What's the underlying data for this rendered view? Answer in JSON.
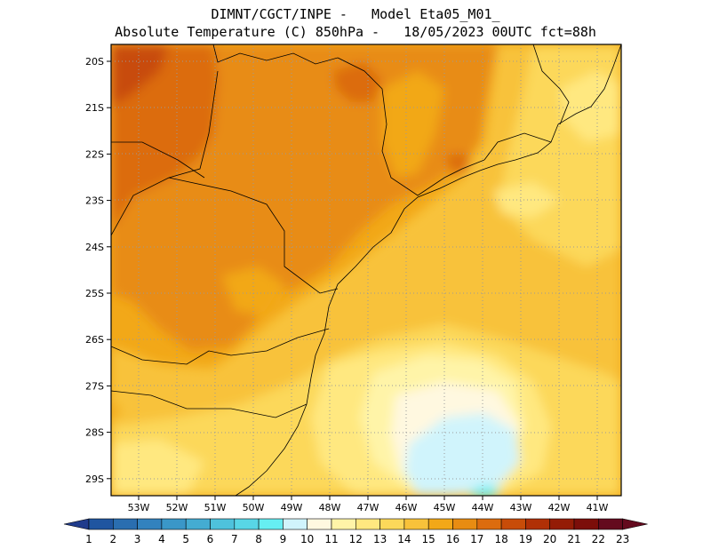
{
  "title_line1": "DIMNT/CGCT/INPE -   Model Eta05_M01_",
  "title_line2": "Absolute Temperature (C) 850hPa -   18/05/2023 00UTC fct=88h",
  "lon_ticks": [
    "53W",
    "52W",
    "51W",
    "50W",
    "49W",
    "48W",
    "47W",
    "46W",
    "45W",
    "44W",
    "43W",
    "42W",
    "41W"
  ],
  "lat_ticks": [
    "20S",
    "21S",
    "22S",
    "23S",
    "24S",
    "25S",
    "26S",
    "27S",
    "28S",
    "29S"
  ],
  "colorbar": {
    "labels": [
      "1",
      "2",
      "3",
      "4",
      "5",
      "6",
      "7",
      "8",
      "9",
      "10",
      "11",
      "12",
      "13",
      "14",
      "15",
      "16",
      "17",
      "18",
      "19",
      "20",
      "21",
      "22",
      "23"
    ],
    "colors": [
      "#203c8c",
      "#1f55a0",
      "#2a6eb0",
      "#3282be",
      "#3a97c8",
      "#44acd2",
      "#4ec2dc",
      "#58d6e6",
      "#66eef2",
      "#d0f4fc",
      "#fff8e0",
      "#fff4a8",
      "#ffe880",
      "#fcd85a",
      "#f8c23a",
      "#f2a818",
      "#e88c12",
      "#dc6c0e",
      "#c84c08",
      "#b03006",
      "#941c06",
      "#7c0e0a",
      "#640a1e"
    ]
  }
}
